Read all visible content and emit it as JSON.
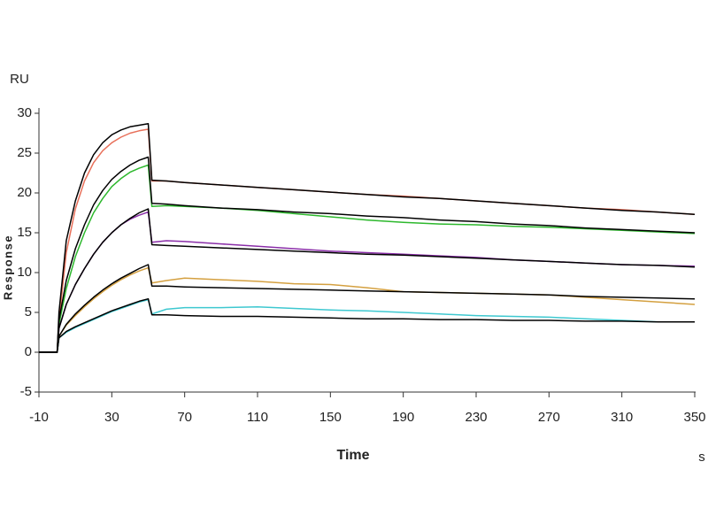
{
  "chart_data": {
    "type": "line",
    "y_unit_label": "RU",
    "y_label": "Response",
    "x_label": "Time",
    "x_unit_label": "s",
    "xlim": [
      -10,
      350
    ],
    "ylim": [
      -5,
      30
    ],
    "xticks": [
      -10,
      30,
      70,
      110,
      150,
      190,
      230,
      270,
      310,
      350
    ],
    "yticks": [
      -5,
      0,
      5,
      10,
      15,
      20,
      25,
      30
    ],
    "grid": false,
    "x": [
      -10,
      -5,
      0,
      1,
      5,
      10,
      15,
      20,
      25,
      30,
      35,
      40,
      45,
      50,
      52,
      60,
      70,
      90,
      110,
      130,
      150,
      170,
      190,
      210,
      230,
      250,
      270,
      290,
      310,
      330,
      350
    ],
    "series": [
      {
        "color": "#e8705a",
        "values": [
          0,
          0,
          0,
          4,
          12.5,
          18,
          21.5,
          23.8,
          25.3,
          26.3,
          27,
          27.5,
          27.8,
          28,
          21.5,
          21.5,
          21.3,
          21.0,
          20.7,
          20.4,
          20.1,
          19.8,
          19.6,
          19.3,
          19.0,
          18.7,
          18.4,
          18.1,
          17.9,
          17.6,
          17.3
        ]
      },
      {
        "color": "#2db82d",
        "values": [
          0,
          0,
          0,
          3.5,
          8,
          12,
          15,
          17.5,
          19.3,
          20.8,
          21.8,
          22.6,
          23.1,
          23.5,
          18.3,
          18.4,
          18.3,
          18.1,
          17.8,
          17.4,
          17.0,
          16.6,
          16.3,
          16.1,
          16.0,
          15.8,
          15.7,
          15.5,
          15.3,
          15.1,
          14.9
        ]
      },
      {
        "color": "#8a2ea8",
        "values": [
          0,
          0,
          0,
          3,
          6,
          8.5,
          10.5,
          12.3,
          13.8,
          15,
          16,
          16.7,
          17.2,
          17.6,
          13.8,
          14.0,
          13.9,
          13.6,
          13.3,
          13.0,
          12.7,
          12.5,
          12.3,
          12.1,
          11.9,
          11.6,
          11.4,
          11.2,
          11.0,
          10.9,
          10.8
        ]
      },
      {
        "color": "#d4a040",
        "values": [
          0,
          0,
          0,
          2,
          3.4,
          4.6,
          5.7,
          6.7,
          7.6,
          8.4,
          9.1,
          9.7,
          10.2,
          10.6,
          8.7,
          9.0,
          9.3,
          9.1,
          8.9,
          8.6,
          8.5,
          8.1,
          7.6,
          7.5,
          7.4,
          7.3,
          7.2,
          6.9,
          6.6,
          6.3,
          6.0
        ]
      },
      {
        "color": "#3ec8d0",
        "values": [
          0,
          0,
          0,
          1.8,
          2.5,
          3.1,
          3.6,
          4.1,
          4.6,
          5.1,
          5.5,
          5.9,
          6.3,
          6.6,
          4.8,
          5.4,
          5.6,
          5.6,
          5.7,
          5.5,
          5.3,
          5.2,
          5.0,
          4.8,
          4.6,
          4.5,
          4.4,
          4.2,
          4.0,
          3.8,
          null
        ]
      },
      {
        "color": "#000000",
        "values": [
          0,
          0,
          0,
          5,
          14,
          19,
          22.5,
          24.8,
          26.3,
          27.3,
          27.9,
          28.3,
          28.5,
          28.7,
          21.6,
          21.5,
          21.3,
          21.0,
          20.7,
          20.4,
          20.1,
          19.8,
          19.5,
          19.3,
          19.0,
          18.7,
          18.4,
          18.1,
          17.8,
          17.6,
          17.3
        ]
      },
      {
        "color": "#000000",
        "values": [
          0,
          0,
          0,
          4,
          9,
          13,
          16,
          18.5,
          20.3,
          21.7,
          22.7,
          23.5,
          24.1,
          24.5,
          18.7,
          18.6,
          18.4,
          18.1,
          17.9,
          17.6,
          17.4,
          17.1,
          16.9,
          16.6,
          16.4,
          16.1,
          15.9,
          15.6,
          15.4,
          15.2,
          15.0
        ]
      },
      {
        "color": "#000000",
        "values": [
          0,
          0,
          0,
          3,
          6,
          8.5,
          10.5,
          12.3,
          13.8,
          15,
          16,
          16.8,
          17.5,
          18,
          13.5,
          13.4,
          13.3,
          13.1,
          12.9,
          12.7,
          12.5,
          12.3,
          12.2,
          12.0,
          11.8,
          11.6,
          11.4,
          11.2,
          11.0,
          10.9,
          10.7
        ]
      },
      {
        "color": "#000000",
        "values": [
          0,
          0,
          0,
          2,
          3.5,
          4.8,
          5.9,
          6.9,
          7.8,
          8.6,
          9.3,
          9.9,
          10.5,
          11,
          8.3,
          8.3,
          8.2,
          8.1,
          8.0,
          7.9,
          7.8,
          7.7,
          7.6,
          7.5,
          7.4,
          7.3,
          7.2,
          7.0,
          6.9,
          6.8,
          6.7
        ]
      },
      {
        "color": "#000000",
        "values": [
          0,
          0,
          0,
          1.8,
          2.6,
          3.2,
          3.7,
          4.2,
          4.7,
          5.2,
          5.6,
          6,
          6.4,
          6.7,
          4.7,
          4.7,
          4.6,
          4.5,
          4.5,
          4.4,
          4.3,
          4.2,
          4.2,
          4.1,
          4.1,
          4.0,
          4.0,
          3.9,
          3.9,
          3.8,
          3.8
        ]
      }
    ]
  }
}
